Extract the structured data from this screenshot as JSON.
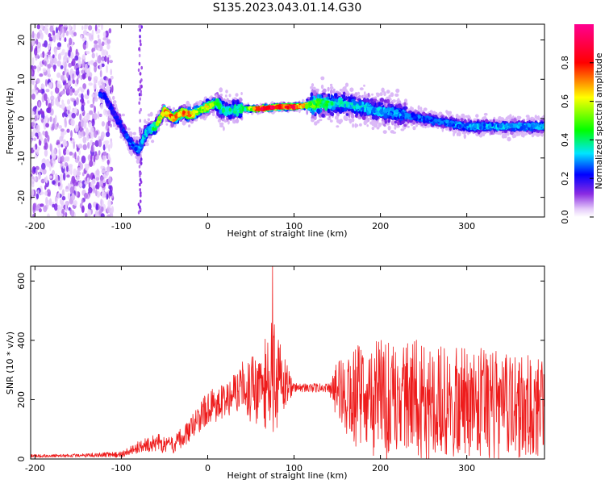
{
  "figure_title": "S135.2023.043.01.14.G30",
  "chart_data": [
    {
      "type": "heatmap",
      "xlabel": "Height of straight line (km)",
      "ylabel": "Frequency (Hz)",
      "xlim": [
        -205,
        390
      ],
      "ylim": [
        -25,
        24
      ],
      "x_ticks": [
        -200,
        -100,
        0,
        100,
        200,
        300
      ],
      "y_ticks": [
        -20,
        -10,
        0,
        10,
        20
      ],
      "colorbar": {
        "label": "Normalized spectral amplitude",
        "range": [
          0,
          1
        ],
        "ticks": [
          0.0,
          0.2,
          0.4,
          0.6,
          0.8
        ],
        "colormap": "rainbow (white-violet-blue-cyan-green-yellow-red-magenta)"
      },
      "ridge": {
        "description": "frequency centroid of the dominant spectral ridge",
        "x": [
          -120,
          -100,
          -90,
          -80,
          -70,
          -60,
          -50,
          -40,
          -30,
          -20,
          -10,
          0,
          10,
          20,
          40,
          60,
          80,
          100,
          120,
          150,
          200,
          250,
          300,
          350,
          390
        ],
        "freq": [
          6,
          -2,
          -6,
          -8,
          -3,
          -2,
          2,
          0,
          1.5,
          1,
          2,
          3,
          4,
          2,
          2.5,
          2.5,
          3,
          3,
          3.5,
          4,
          2,
          0,
          -2,
          -2,
          -2
        ],
        "peak_amplitude": [
          0.25,
          0.25,
          0.3,
          0.35,
          0.4,
          0.5,
          0.85,
          0.8,
          0.85,
          0.8,
          0.6,
          0.75,
          0.5,
          0.4,
          0.45,
          0.95,
          1.0,
          0.95,
          0.6,
          0.4,
          0.35,
          0.3,
          0.35,
          0.35,
          0.35
        ]
      }
    },
    {
      "type": "line",
      "xlabel": "Height of straight line (km)",
      "ylabel": "SNR (10 * v/v)",
      "xlim": [
        -205,
        390
      ],
      "ylim": [
        0,
        650
      ],
      "x_ticks": [
        -200,
        -100,
        0,
        100,
        200,
        300
      ],
      "y_ticks": [
        0,
        200,
        400,
        600
      ],
      "color": "#ee1c1c",
      "envelope": {
        "x": [
          -205,
          -150,
          -100,
          -80,
          -60,
          -40,
          -20,
          0,
          20,
          40,
          50,
          60,
          70,
          75,
          80,
          90,
          100,
          120,
          140,
          150,
          170,
          200,
          230,
          260,
          300,
          350,
          390
        ],
        "mean": [
          10,
          12,
          15,
          40,
          55,
          45,
          100,
          170,
          200,
          250,
          230,
          250,
          260,
          290,
          270,
          260,
          240,
          240,
          240,
          230,
          210,
          200,
          200,
          200,
          190,
          180,
          170
        ],
        "spread": [
          5,
          6,
          10,
          20,
          30,
          30,
          40,
          60,
          60,
          80,
          110,
          140,
          160,
          200,
          170,
          90,
          15,
          15,
          15,
          100,
          170,
          200,
          210,
          200,
          190,
          180,
          170
        ]
      },
      "peak": {
        "x": 75,
        "y": 650
      }
    }
  ]
}
